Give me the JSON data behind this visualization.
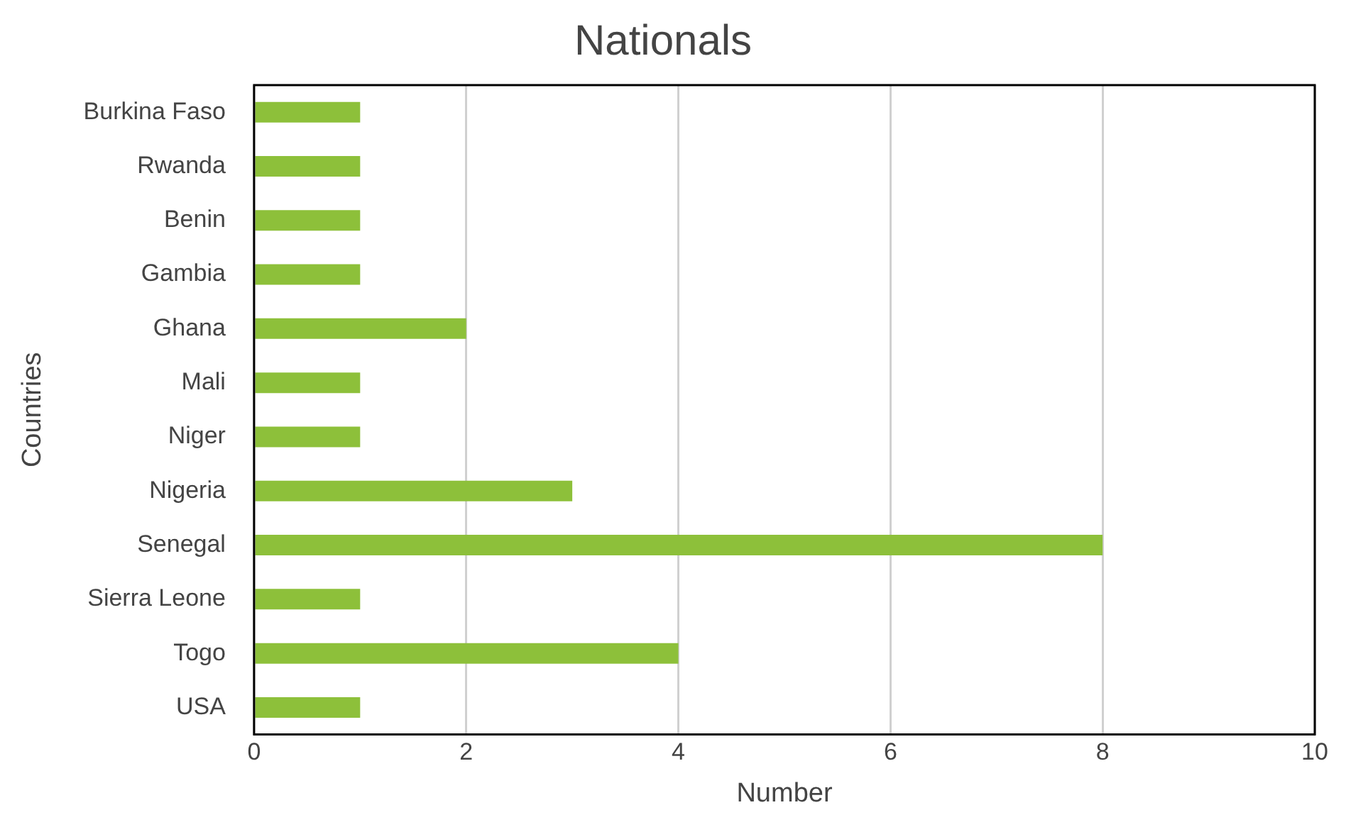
{
  "chart_data": {
    "type": "bar",
    "orientation": "horizontal",
    "title": "Nationals",
    "xlabel": "Number",
    "ylabel": "Countries",
    "categories": [
      "Burkina Faso",
      "Rwanda",
      "Benin",
      "Gambia",
      "Ghana",
      "Mali",
      "Niger",
      "Nigeria",
      "Senegal",
      "Sierra Leone",
      "Togo",
      "USA"
    ],
    "values": [
      1,
      1,
      1,
      1,
      2,
      1,
      1,
      3,
      8,
      1,
      4,
      1
    ],
    "color": "#8dc03a",
    "xlim": [
      0,
      10
    ],
    "xticks": [
      0,
      2,
      4,
      6,
      8,
      10
    ],
    "grid": "x",
    "legend": false
  }
}
